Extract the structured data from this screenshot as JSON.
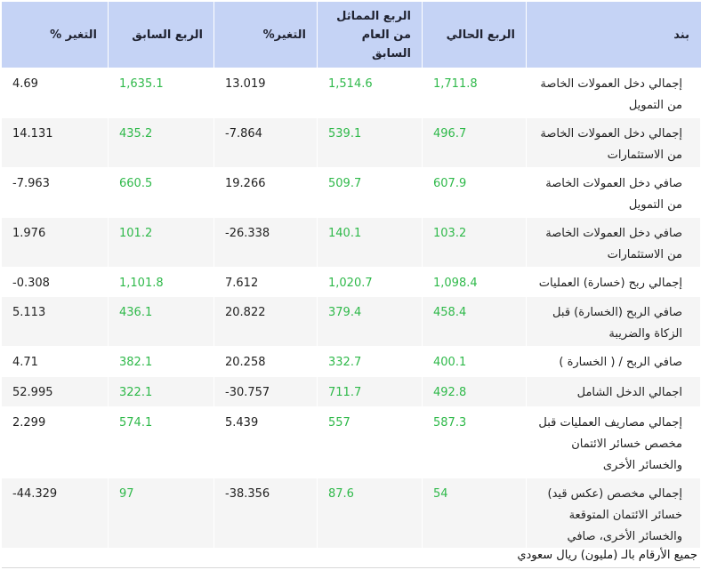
{
  "columns": {
    "item": "بند",
    "current_q": "الربع الحالي",
    "same_q_last_year": "الربع المماثل من العام السابق",
    "change_pct": "التغير%",
    "previous_q": "الربع السابق",
    "change_pct_2": "التغير %"
  },
  "rows": [
    {
      "item": "إجمالي دخل العمولات الخاصة من التمويل",
      "current": "1,711.8",
      "same_last_year": "1,514.6",
      "change": "13.019",
      "previous": "1,635.1",
      "change2": "4.69"
    },
    {
      "item": "إجمالي دخل العمولات الخاصة من الاستثمارات",
      "current": "496.7",
      "same_last_year": "539.1",
      "change": "7.864-",
      "previous": "435.2",
      "change2": "14.131"
    },
    {
      "item": "صافي دخل العمولات الخاصة من التمويل",
      "current": "607.9",
      "same_last_year": "509.7",
      "change": "19.266",
      "previous": "660.5",
      "change2": "7.963-"
    },
    {
      "item": "صافي دخل العمولات الخاصة من الاستثمارات",
      "current": "103.2",
      "same_last_year": "140.1",
      "change": "26.338-",
      "previous": "101.2",
      "change2": "1.976"
    },
    {
      "item": "إجمالي ربح (خسارة) العمليات",
      "current": "1,098.4",
      "same_last_year": "1,020.7",
      "change": "7.612",
      "previous": "1,101.8",
      "change2": "0.308-"
    },
    {
      "item": "صافي الربح (الخسارة) قبل الزكاة والضريبة",
      "current": "458.4",
      "same_last_year": "379.4",
      "change": "20.822",
      "previous": "436.1",
      "change2": "5.113"
    },
    {
      "item": "صافي الربح / ( الخسارة )",
      "current": "400.1",
      "same_last_year": "332.7",
      "change": "20.258",
      "previous": "382.1",
      "change2": "4.71"
    },
    {
      "item": "اجمالي الدخل الشامل",
      "current": "492.8",
      "same_last_year": "711.7",
      "change": "30.757-",
      "previous": "322.1",
      "change2": "52.995"
    },
    {
      "item": "إجمالي مصاريف العمليات قبل مخصص خسائر الائتمان والخسائر الأخرى",
      "current": "587.3",
      "same_last_year": "557",
      "change": "5.439",
      "previous": "574.1",
      "change2": "2.299"
    },
    {
      "item": "إجمالي مخصص (عكس قيد) خسائر الائتمان المتوقعة والخسائر الأخرى، صافي",
      "current": "54",
      "same_last_year": "87.6",
      "change": "38.356-",
      "previous": "97",
      "change2": "44.329-"
    }
  ],
  "footnote": "جميع الأرقام بالـ (مليون) ريال سعودي",
  "colors": {
    "header_bg": "#c5d3f5",
    "value_green": "#2fb94a",
    "row_stripe": "#f5f5f5"
  }
}
